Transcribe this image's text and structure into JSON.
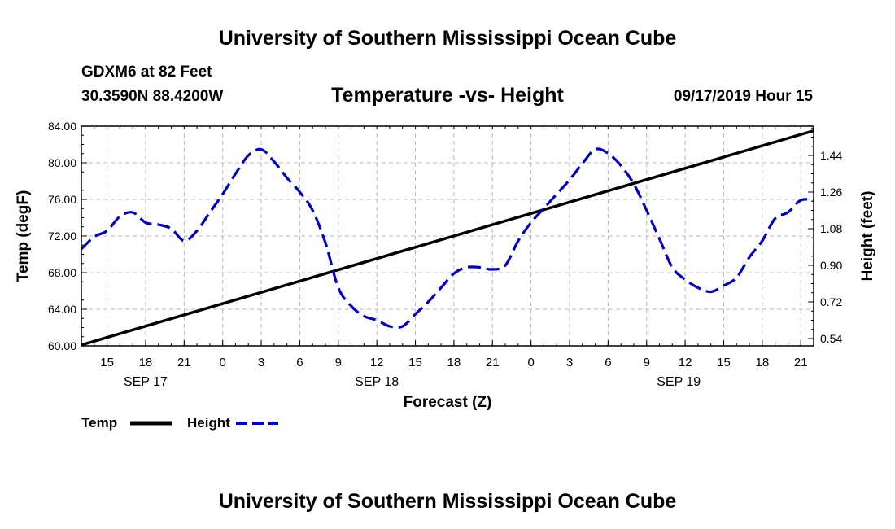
{
  "header": {
    "title": "University of Southern Mississippi Ocean Cube",
    "station": "GDXM6 at 82 Feet",
    "coords": "30.3590N 88.4200W",
    "chart_title": "Temperature -vs- Height",
    "valid_time": "09/17/2019 Hour 15"
  },
  "footer": {
    "title": "University of Southern Mississippi Ocean Cube"
  },
  "legend": {
    "temp_label": "Temp",
    "height_label": "Height"
  },
  "colors": {
    "temp": "#000000",
    "height": "#0000cc",
    "grid": "#b8b8b8"
  },
  "chart_data": {
    "type": "line",
    "title": "Temperature -vs- Height",
    "xlabel": "Forecast (Z)",
    "ylabel": "Temp (degF)",
    "y2label": "Height (feet)",
    "xlim": [
      13,
      70
    ],
    "ylim": [
      60,
      84
    ],
    "y2lim": [
      0.504,
      1.584
    ],
    "yticks": [
      "60.00",
      "64.00",
      "68.00",
      "72.00",
      "76.00",
      "80.00",
      "84.00"
    ],
    "y2ticks": [
      "0.54",
      "0.72",
      "0.90",
      "1.08",
      "1.26",
      "1.44"
    ],
    "xticks": [
      {
        "x": 15,
        "label": "15"
      },
      {
        "x": 18,
        "label": "18"
      },
      {
        "x": 21,
        "label": "21"
      },
      {
        "x": 24,
        "label": "0"
      },
      {
        "x": 27,
        "label": "3"
      },
      {
        "x": 30,
        "label": "6"
      },
      {
        "x": 33,
        "label": "9"
      },
      {
        "x": 36,
        "label": "12"
      },
      {
        "x": 39,
        "label": "15"
      },
      {
        "x": 42,
        "label": "18"
      },
      {
        "x": 45,
        "label": "21"
      },
      {
        "x": 48,
        "label": "0"
      },
      {
        "x": 51,
        "label": "3"
      },
      {
        "x": 54,
        "label": "6"
      },
      {
        "x": 57,
        "label": "9"
      },
      {
        "x": 60,
        "label": "12"
      },
      {
        "x": 63,
        "label": "15"
      },
      {
        "x": 66,
        "label": "18"
      },
      {
        "x": 69,
        "label": "21"
      }
    ],
    "day_labels": [
      {
        "x": 18,
        "label": "SEP 17"
      },
      {
        "x": 36,
        "label": "SEP 18"
      },
      {
        "x": 59.5,
        "label": "SEP 19"
      }
    ],
    "grid": true,
    "series": [
      {
        "name": "Temp",
        "axis": "left",
        "style": "solid",
        "x": [
          13,
          70
        ],
        "values": [
          60.1,
          83.5
        ]
      },
      {
        "name": "Height",
        "axis": "right",
        "style": "dashed",
        "x": [
          13,
          14,
          15,
          16,
          17,
          18,
          19,
          20,
          21,
          22,
          23,
          24,
          25,
          26,
          27,
          28,
          29,
          30,
          31,
          32,
          33,
          34,
          35,
          36,
          37,
          38,
          39,
          40,
          41,
          42,
          43,
          44,
          45,
          46,
          47,
          48,
          49,
          50,
          51,
          52,
          53,
          54,
          55,
          56,
          57,
          58,
          59,
          60,
          61,
          62,
          63,
          64,
          65,
          66,
          67,
          68,
          69,
          70
        ],
        "values": [
          0.98,
          1.04,
          1.07,
          1.14,
          1.16,
          1.11,
          1.1,
          1.08,
          1.02,
          1.07,
          1.16,
          1.25,
          1.35,
          1.44,
          1.47,
          1.41,
          1.33,
          1.26,
          1.17,
          1.01,
          0.79,
          0.7,
          0.65,
          0.63,
          0.6,
          0.6,
          0.66,
          0.72,
          0.79,
          0.86,
          0.89,
          0.89,
          0.88,
          0.9,
          1.02,
          1.11,
          1.18,
          1.25,
          1.32,
          1.4,
          1.47,
          1.45,
          1.39,
          1.3,
          1.17,
          1.03,
          0.89,
          0.83,
          0.79,
          0.77,
          0.8,
          0.84,
          0.94,
          1.02,
          1.13,
          1.16,
          1.22,
          1.22
        ]
      }
    ]
  }
}
